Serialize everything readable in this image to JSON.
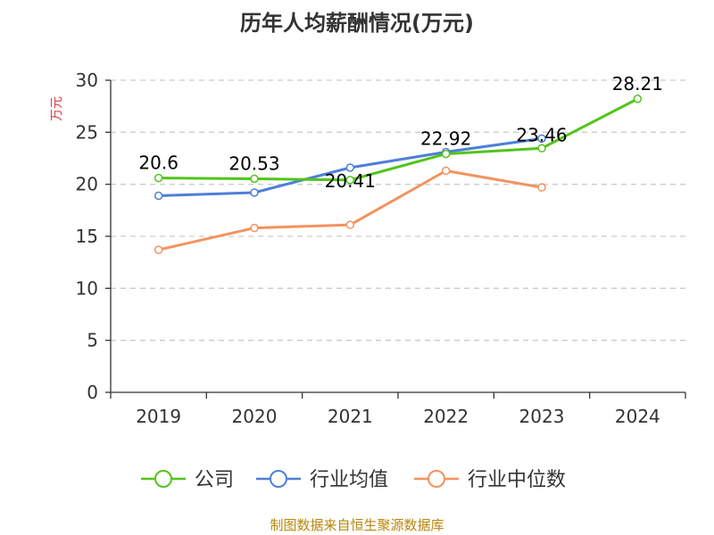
{
  "chart_data": {
    "type": "line",
    "title": "历年人均薪酬情况(万元)",
    "ylabel": "万元",
    "categories": [
      "2019",
      "2020",
      "2021",
      "2022",
      "2023",
      "2024"
    ],
    "ylim": [
      0,
      30
    ],
    "yticks": [
      0,
      5,
      10,
      15,
      20,
      25,
      30
    ],
    "grid": true,
    "legend_position": "bottom",
    "series": [
      {
        "name": "公司",
        "color": "#52c41a",
        "values": [
          20.6,
          20.53,
          20.41,
          22.92,
          23.46,
          28.21
        ],
        "labels": [
          "20.6",
          "20.53",
          "20.41",
          "22.92",
          "23.46",
          "28.21"
        ]
      },
      {
        "name": "行业均值",
        "color": "#4e7fd8",
        "values": [
          18.9,
          19.2,
          21.6,
          23.1,
          24.4,
          null
        ]
      },
      {
        "name": "行业中位数",
        "color": "#f4925e",
        "values": [
          13.7,
          15.8,
          16.1,
          21.3,
          19.7,
          null
        ]
      }
    ],
    "source": "制图数据来自恒生聚源数据库",
    "source_color": "#b8860b",
    "ylabel_color": "#e0393e"
  }
}
